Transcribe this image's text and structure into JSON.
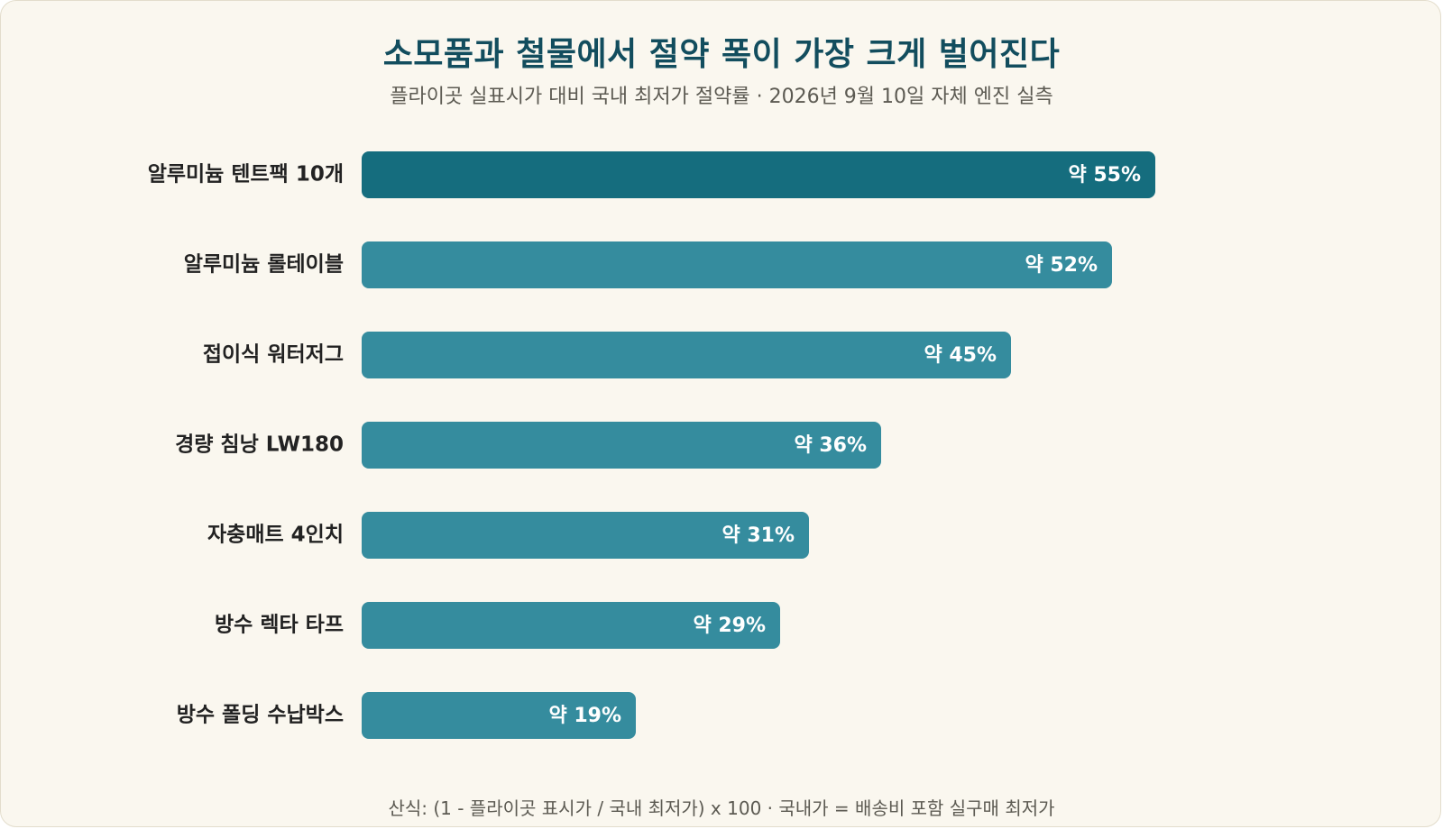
{
  "header": {
    "title": "소모품과 철물에서 절약 폭이 가장 크게 벌어진다",
    "subtitle": "플라이곳 실표시가 대비 국내 최저가 절약률 · 2026년 9월 10일 자체 엔진 실측"
  },
  "footer": {
    "note": "산식: (1 - 플라이곳 표시가 / 국내 최저가) x 100 · 국내가 = 배송비 포함 실구매 최저가"
  },
  "colors": {
    "background": "#faf7ef",
    "highlight_bar": "#156d7e",
    "bar": "#358c9e",
    "title": "#124d5e"
  },
  "chart_data": {
    "type": "bar",
    "orientation": "horizontal",
    "title": "소모품과 철물에서 절약 폭이 가장 크게 벌어진다",
    "subtitle": "플라이곳 실표시가 대비 국내 최저가 절약률 · 2026년 9월 10일 자체 엔진 실측",
    "xlabel": "",
    "ylabel": "",
    "unit": "%",
    "xlim": [
      0,
      70
    ],
    "grid": false,
    "legend": "none",
    "categories": [
      "알루미늄 텐트팩 10개",
      "알루미늄 롤테이블",
      "접이식 워터저그",
      "경량 침낭 LW180",
      "자충매트 4인치",
      "방수 렉타 타프",
      "방수 폴딩 수납박스"
    ],
    "values": [
      55,
      52,
      45,
      36,
      31,
      29,
      19
    ],
    "value_labels": [
      "약 55%",
      "약 52%",
      "약 45%",
      "약 36%",
      "약 31%",
      "약 29%",
      "약 19%"
    ],
    "highlight_index": 0
  }
}
